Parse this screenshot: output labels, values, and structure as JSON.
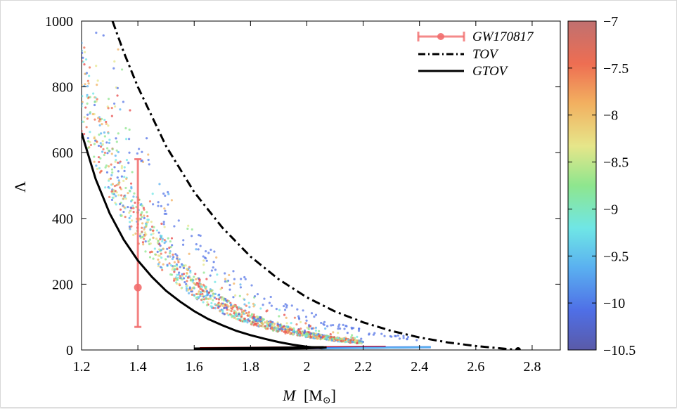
{
  "chart_data": {
    "type": "scatter",
    "xlabel": "M",
    "xlabel_unit": "[M",
    "xlabel_unit_sub": "⊙",
    "xlabel_unit_close": "]",
    "ylabel": "Λ",
    "xlim": [
      1.2,
      2.9
    ],
    "ylim": [
      0,
      1000
    ],
    "xticks": [
      "1.2",
      "1.4",
      "1.6",
      "1.8",
      "2",
      "2.2",
      "2.4",
      "2.6",
      "2.8"
    ],
    "yticks": [
      "0",
      "200",
      "400",
      "600",
      "800",
      "1000"
    ],
    "colorbar": {
      "range": [
        -10.5,
        -7
      ],
      "ticks": [
        "−7",
        "−7.5",
        "−8",
        "−8.5",
        "−9",
        "−9.5",
        "−10",
        "−10.5"
      ]
    },
    "legend": {
      "placement": "top-right",
      "entries": [
        "GW170817",
        "TOV",
        "GTOV"
      ]
    },
    "series": [
      {
        "name": "GW170817",
        "kind": "errorbar",
        "x": [
          1.4
        ],
        "y": [
          190
        ],
        "yerr_low": [
          70
        ],
        "yerr_high": [
          580
        ],
        "color": "#f26d6d"
      },
      {
        "name": "TOV",
        "kind": "line",
        "style": "dash-dot",
        "color": "#000000",
        "x": [
          1.31,
          1.35,
          1.4,
          1.5,
          1.6,
          1.7,
          1.8,
          1.9,
          2.0,
          2.1,
          2.2,
          2.3,
          2.4,
          2.5,
          2.6,
          2.7,
          2.75
        ],
        "y": [
          1000,
          905,
          800,
          620,
          480,
          372,
          284,
          215,
          160,
          117,
          84,
          58,
          38,
          23,
          12,
          4,
          0
        ]
      },
      {
        "name": "GTOV",
        "kind": "line",
        "style": "solid",
        "color": "#000000",
        "x": [
          1.2,
          1.25,
          1.3,
          1.35,
          1.4,
          1.45,
          1.5,
          1.55,
          1.6,
          1.65,
          1.7,
          1.75,
          1.8,
          1.85,
          1.9,
          1.95,
          2.0,
          2.05,
          2.07,
          2.0,
          1.9,
          1.8,
          1.7,
          1.6
        ],
        "y": [
          660,
          520,
          415,
          335,
          272,
          222,
          180,
          147,
          118,
          94,
          75,
          58,
          45,
          34,
          24,
          16,
          10,
          6,
          8,
          5,
          4,
          3,
          2,
          1
        ]
      }
    ]
  }
}
